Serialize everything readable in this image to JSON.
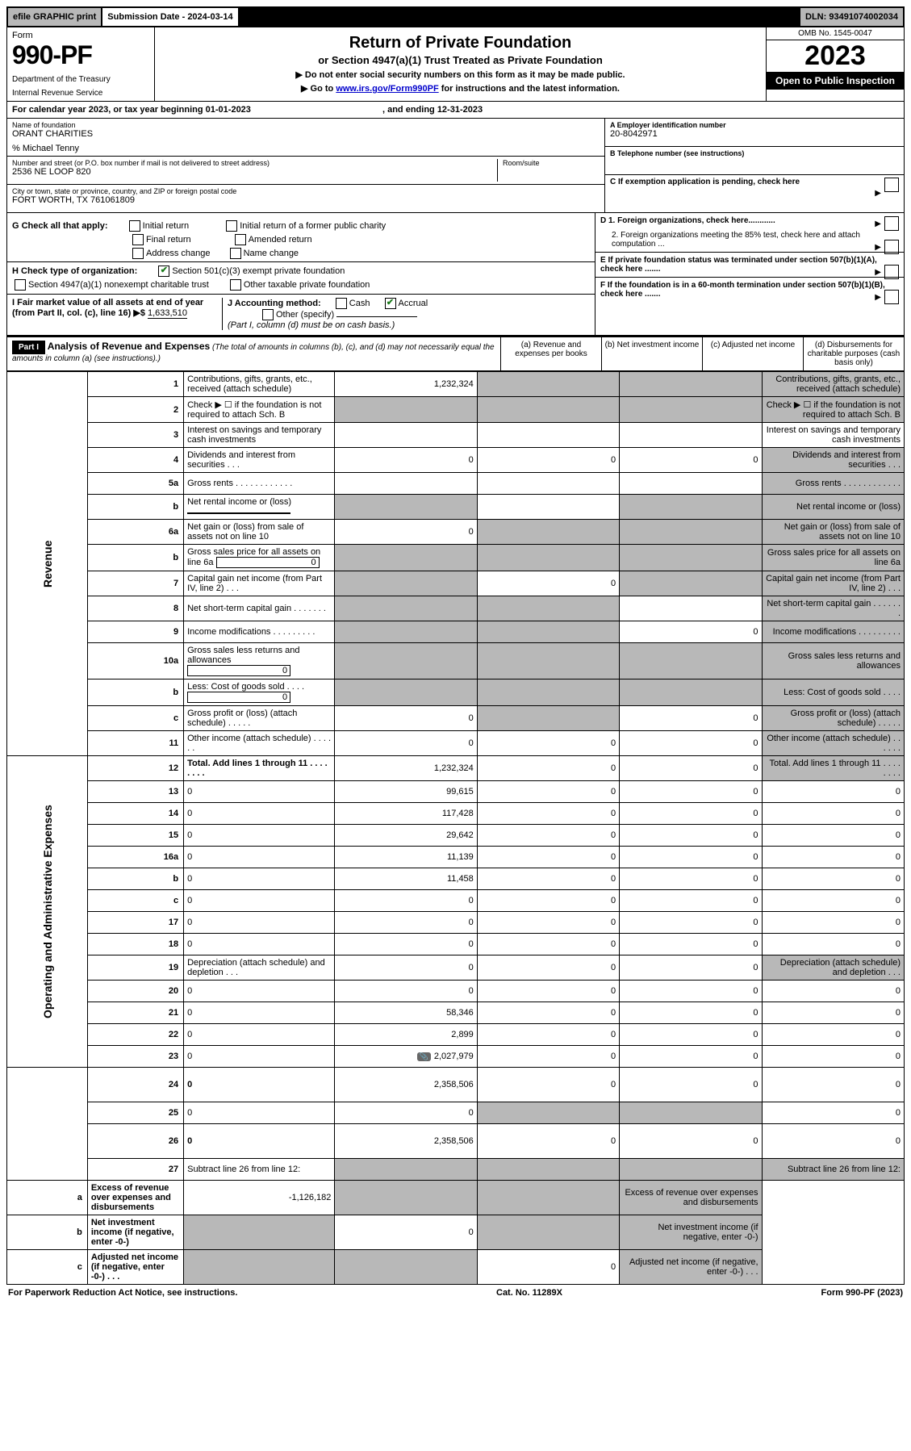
{
  "topbar": {
    "efile": "efile GRAPHIC print",
    "submission": "Submission Date - 2024-03-14",
    "dln": "DLN: 93491074002034"
  },
  "header": {
    "form_label": "Form",
    "form_number": "990-PF",
    "dept": "Department of the Treasury",
    "irs": "Internal Revenue Service",
    "title": "Return of Private Foundation",
    "subtitle": "or Section 4947(a)(1) Trust Treated as Private Foundation",
    "note1": "▶ Do not enter social security numbers on this form as it may be made public.",
    "note2_pre": "▶ Go to ",
    "note2_link": "www.irs.gov/Form990PF",
    "note2_post": " for instructions and the latest information.",
    "omb": "OMB No. 1545-0047",
    "year": "2023",
    "open": "Open to Public Inspection"
  },
  "cal_year": {
    "text": "For calendar year 2023, or tax year beginning 01-01-2023",
    "ending": ", and ending 12-31-2023"
  },
  "info": {
    "name_lbl": "Name of foundation",
    "name_val": "ORANT CHARITIES",
    "care_of": "% Michael Tenny",
    "addr_lbl": "Number and street (or P.O. box number if mail is not delivered to street address)",
    "addr_val": "2536 NE LOOP 820",
    "room_lbl": "Room/suite",
    "city_lbl": "City or town, state or province, country, and ZIP or foreign postal code",
    "city_val": "FORT WORTH, TX  761061809",
    "a_lbl": "A Employer identification number",
    "a_val": "20-8042971",
    "b_lbl": "B Telephone number (see instructions)",
    "c_lbl": "C If exemption application is pending, check here"
  },
  "g_section": {
    "g_label": "G Check all that apply:",
    "opts": [
      "Initial return",
      "Final return",
      "Address change",
      "Initial return of a former public charity",
      "Amended return",
      "Name change"
    ],
    "h_label": "H Check type of organization:",
    "h_501c3": "Section 501(c)(3) exempt private foundation",
    "h_4947": "Section 4947(a)(1) nonexempt charitable trust",
    "h_other": "Other taxable private foundation",
    "i_label": "I Fair market value of all assets at end of year (from Part II, col. (c), line 16) ▶$ ",
    "i_val": "1,633,510",
    "j_label": "J Accounting method:",
    "j_cash": "Cash",
    "j_accrual": "Accrual",
    "j_other": "Other (specify)",
    "j_note": "(Part I, column (d) must be on cash basis.)",
    "d1": "D 1. Foreign organizations, check here............",
    "d2": "2. Foreign organizations meeting the 85% test, check here and attach computation ...",
    "e": "E  If private foundation status was terminated under section 507(b)(1)(A), check here .......",
    "f": "F  If the foundation is in a 60-month termination under section 507(b)(1)(B), check here .......",
    "arrow": "▶"
  },
  "part1": {
    "label": "Part I",
    "title": "Analysis of Revenue and Expenses",
    "note": "(The total of amounts in columns (b), (c), and (d) may not necessarily equal the amounts in column (a) (see instructions).)",
    "col_a": "(a)   Revenue and expenses per books",
    "col_b": "(b)   Net investment income",
    "col_c": "(c)   Adjusted net income",
    "col_d": "(d)   Disbursements for charitable purposes (cash basis only)"
  },
  "side": {
    "revenue": "Revenue",
    "expenses": "Operating and Administrative Expenses"
  },
  "rows": [
    {
      "n": "1",
      "d": "Contributions, gifts, grants, etc., received (attach schedule)",
      "a": "1,232,324",
      "b_sh": true,
      "c_sh": true,
      "d_sh": true
    },
    {
      "n": "2",
      "d": "Check ▶ ☐ if the foundation is not required to attach Sch. B",
      "a_sh": true,
      "b_sh": true,
      "c_sh": true,
      "d_sh": true,
      "bold_not": true
    },
    {
      "n": "3",
      "d": "Interest on savings and temporary cash investments"
    },
    {
      "n": "4",
      "d": "Dividends and interest from securities   .   .   .",
      "a": "0",
      "b": "0",
      "c": "0",
      "d_sh": true
    },
    {
      "n": "5a",
      "d": "Gross rents   .   .   .   .   .   .   .   .   .   .   .   .",
      "d_sh": true
    },
    {
      "n": "b",
      "d": "Net rental income or (loss)",
      "inline": true,
      "a_sh": true,
      "c_sh": true,
      "d_sh": true
    },
    {
      "n": "6a",
      "d": "Net gain or (loss) from sale of assets not on line 10",
      "a": "0",
      "b_sh": true,
      "c_sh": true,
      "d_sh": true
    },
    {
      "n": "b",
      "d": "Gross sales price for all assets on line 6a",
      "inline": true,
      "inline_v": "0",
      "a_sh": true,
      "b_sh": true,
      "c_sh": true,
      "d_sh": true
    },
    {
      "n": "7",
      "d": "Capital gain net income (from Part IV, line 2)   .   .   .",
      "a_sh": true,
      "b": "0",
      "c_sh": true,
      "d_sh": true
    },
    {
      "n": "8",
      "d": "Net short-term capital gain   .   .   .   .   .   .   .",
      "a_sh": true,
      "b_sh": true,
      "d_sh": true
    },
    {
      "n": "9",
      "d": "Income modifications   .   .   .   .   .   .   .   .   .",
      "a_sh": true,
      "b_sh": true,
      "c": "0",
      "d_sh": true
    },
    {
      "n": "10a",
      "d": "Gross sales less returns and allowances",
      "inline": true,
      "inline_v": "0",
      "a_sh": true,
      "b_sh": true,
      "c_sh": true,
      "d_sh": true
    },
    {
      "n": "b",
      "d": "Less: Cost of goods sold   .   .   .   .",
      "inline": true,
      "inline_v": "0",
      "a_sh": true,
      "b_sh": true,
      "c_sh": true,
      "d_sh": true
    },
    {
      "n": "c",
      "d": "Gross profit or (loss) (attach schedule)   .   .   .   .   .",
      "a": "0",
      "b_sh": true,
      "c": "0",
      "d_sh": true
    },
    {
      "n": "11",
      "d": "Other income (attach schedule)   .   .   .   .   .   .",
      "a": "0",
      "b": "0",
      "c": "0",
      "d_sh": true
    },
    {
      "n": "12",
      "d": "Total. Add lines 1 through 11   .   .   .   .   .   .   .   .",
      "bold": true,
      "a": "1,232,324",
      "b": "0",
      "c": "0",
      "d_sh": true
    },
    {
      "n": "13",
      "d": "0",
      "a": "99,615",
      "b": "0",
      "c": "0",
      "sec": "exp"
    },
    {
      "n": "14",
      "d": "0",
      "a": "117,428",
      "b": "0",
      "c": "0"
    },
    {
      "n": "15",
      "d": "0",
      "a": "29,642",
      "b": "0",
      "c": "0"
    },
    {
      "n": "16a",
      "d": "0",
      "a": "11,139",
      "b": "0",
      "c": "0"
    },
    {
      "n": "b",
      "d": "0",
      "a": "11,458",
      "b": "0",
      "c": "0"
    },
    {
      "n": "c",
      "d": "0",
      "a": "0",
      "b": "0",
      "c": "0"
    },
    {
      "n": "17",
      "d": "0",
      "a": "0",
      "b": "0",
      "c": "0"
    },
    {
      "n": "18",
      "d": "0",
      "a": "0",
      "b": "0",
      "c": "0"
    },
    {
      "n": "19",
      "d": "Depreciation (attach schedule) and depletion   .   .   .",
      "a": "0",
      "b": "0",
      "c": "0",
      "d_sh": true
    },
    {
      "n": "20",
      "d": "0",
      "a": "0",
      "b": "0",
      "c": "0"
    },
    {
      "n": "21",
      "d": "0",
      "a": "58,346",
      "b": "0",
      "c": "0"
    },
    {
      "n": "22",
      "d": "0",
      "a": "2,899",
      "b": "0",
      "c": "0"
    },
    {
      "n": "23",
      "d": "0",
      "a": "2,027,979",
      "b": "0",
      "c": "0",
      "chip": true
    },
    {
      "n": "24",
      "d": "0",
      "bold": true,
      "tall": true,
      "a": "2,358,506",
      "b": "0",
      "c": "0"
    },
    {
      "n": "25",
      "d": "0",
      "a": "0",
      "b_sh": true,
      "c_sh": true
    },
    {
      "n": "26",
      "d": "0",
      "bold": true,
      "tall": true,
      "a": "2,358,506",
      "b": "0",
      "c": "0"
    },
    {
      "n": "27",
      "d": "Subtract line 26 from line 12:",
      "a_sh": true,
      "b_sh": true,
      "c_sh": true,
      "d_sh": true,
      "sec": "sub"
    },
    {
      "n": "a",
      "d": "Excess of revenue over expenses and disbursements",
      "bold": true,
      "a": "-1,126,182",
      "b_sh": true,
      "c_sh": true,
      "d_sh": true
    },
    {
      "n": "b",
      "d": "Net investment income (if negative, enter -0-)",
      "bold": true,
      "a_sh": true,
      "b": "0",
      "c_sh": true,
      "d_sh": true
    },
    {
      "n": "c",
      "d": "Adjusted net income (if negative, enter -0-)   .   .   .",
      "bold": true,
      "a_sh": true,
      "b_sh": true,
      "c": "0",
      "d_sh": true
    }
  ],
  "footer": {
    "left": "For Paperwork Reduction Act Notice, see instructions.",
    "mid": "Cat. No. 11289X",
    "right": "Form 990-PF (2023)"
  }
}
